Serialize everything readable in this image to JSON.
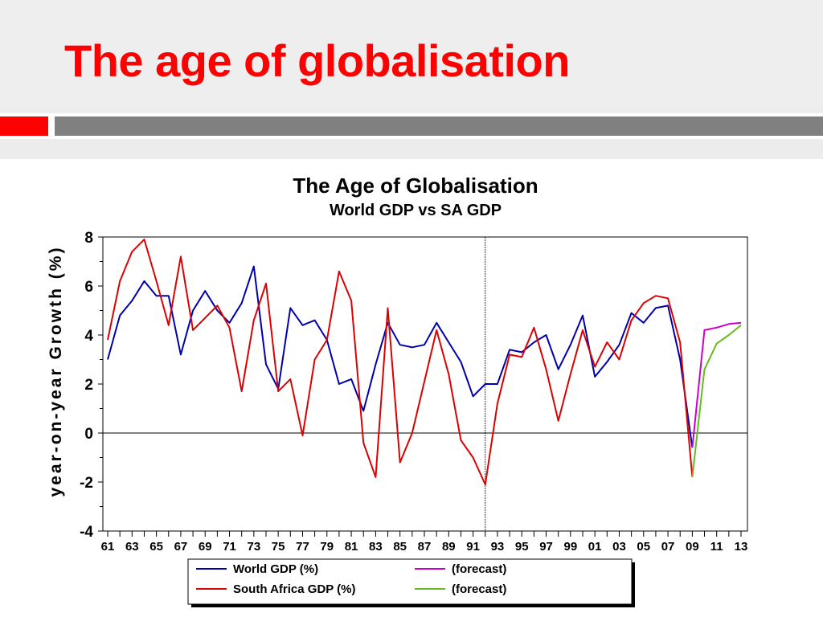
{
  "slide": {
    "title": "The age of globalisation",
    "colors": {
      "title": "#ff0000",
      "accent": "#ff0000",
      "bar": "#808080",
      "header_bg": "#eeeeee"
    }
  },
  "chart_data": {
    "type": "line",
    "title": "The Age of Globalisation",
    "subtitle": "World GDP vs SA GDP",
    "xlabel": "",
    "ylabel": "year-on-year Growth (%)",
    "ylim": [
      -4,
      8
    ],
    "yticks": [
      -4,
      -2,
      0,
      2,
      4,
      6,
      8
    ],
    "xlim": [
      1961,
      2013
    ],
    "xtick_labels": [
      "61",
      "63",
      "65",
      "67",
      "69",
      "71",
      "73",
      "75",
      "77",
      "79",
      "81",
      "83",
      "85",
      "87",
      "89",
      "91",
      "93",
      "95",
      "97",
      "99",
      "01",
      "03",
      "05",
      "07",
      "09",
      "11",
      "13"
    ],
    "xtick_years": [
      1961,
      1963,
      1965,
      1967,
      1969,
      1971,
      1973,
      1975,
      1977,
      1979,
      1981,
      1983,
      1985,
      1987,
      1989,
      1991,
      1993,
      1995,
      1997,
      1999,
      2001,
      2003,
      2005,
      2007,
      2009,
      2011,
      2013
    ],
    "vertical_marker_x": 1992,
    "grid": false,
    "legend_position": "bottom-center",
    "legend": [
      {
        "label": "World GDP (%)",
        "color": "#0000aa"
      },
      {
        "label": "(forecast)",
        "color": "#cc00cc"
      },
      {
        "label": "South Africa GDP (%)",
        "color": "#dd0000"
      },
      {
        "label": "(forecast)",
        "color": "#66bb22"
      }
    ],
    "series": [
      {
        "name": "World GDP (%)",
        "color": "#0000aa",
        "x": [
          1961,
          1962,
          1963,
          1964,
          1965,
          1966,
          1967,
          1968,
          1969,
          1970,
          1971,
          1972,
          1973,
          1974,
          1975,
          1976,
          1977,
          1978,
          1979,
          1980,
          1981,
          1982,
          1983,
          1984,
          1985,
          1986,
          1987,
          1988,
          1989,
          1990,
          1991,
          1992,
          1993,
          1994,
          1995,
          1996,
          1997,
          1998,
          1999,
          2000,
          2001,
          2002,
          2003,
          2004,
          2005,
          2006,
          2007,
          2008,
          2009
        ],
        "values": [
          3.0,
          4.8,
          5.4,
          6.2,
          5.6,
          5.6,
          3.2,
          5.0,
          5.8,
          5.0,
          4.5,
          5.3,
          6.8,
          2.8,
          1.8,
          5.1,
          4.4,
          4.6,
          3.8,
          2.0,
          2.2,
          0.9,
          2.8,
          4.5,
          3.6,
          3.5,
          3.6,
          4.5,
          3.7,
          2.9,
          1.5,
          2.0,
          2.0,
          3.4,
          3.3,
          3.7,
          4.0,
          2.6,
          3.6,
          4.8,
          2.3,
          2.9,
          3.6,
          4.9,
          4.5,
          5.1,
          5.2,
          3.0,
          -0.6
        ]
      },
      {
        "name": "(forecast)",
        "color": "#cc00cc",
        "x": [
          2009,
          2010,
          2011,
          2012,
          2013
        ],
        "values": [
          -0.6,
          4.2,
          4.3,
          4.45,
          4.5
        ]
      },
      {
        "name": "South Africa GDP (%)",
        "color": "#dd0000",
        "x": [
          1961,
          1962,
          1963,
          1964,
          1965,
          1966,
          1967,
          1968,
          1969,
          1970,
          1971,
          1972,
          1973,
          1974,
          1975,
          1976,
          1977,
          1978,
          1979,
          1980,
          1981,
          1982,
          1983,
          1984,
          1985,
          1986,
          1987,
          1988,
          1989,
          1990,
          1991,
          1992,
          1993,
          1994,
          1995,
          1996,
          1997,
          1998,
          1999,
          2000,
          2001,
          2002,
          2003,
          2004,
          2005,
          2006,
          2007,
          2008,
          2009
        ],
        "values": [
          3.8,
          6.2,
          7.4,
          7.9,
          6.2,
          4.4,
          7.2,
          4.2,
          4.7,
          5.2,
          4.3,
          1.7,
          4.6,
          6.1,
          1.7,
          2.2,
          -0.1,
          3.0,
          3.8,
          6.6,
          5.4,
          -0.4,
          -1.8,
          5.1,
          -1.2,
          0.0,
          2.1,
          4.2,
          2.4,
          -0.3,
          -1.0,
          -2.1,
          1.2,
          3.2,
          3.1,
          4.3,
          2.6,
          0.5,
          2.4,
          4.2,
          2.7,
          3.7,
          3.0,
          4.6,
          5.3,
          5.6,
          5.5,
          3.7,
          -1.8
        ]
      },
      {
        "name": "(forecast)",
        "color": "#66bb22",
        "x": [
          2009,
          2010,
          2011,
          2012,
          2013
        ],
        "values": [
          -1.8,
          2.6,
          3.65,
          4.0,
          4.4
        ]
      }
    ]
  }
}
